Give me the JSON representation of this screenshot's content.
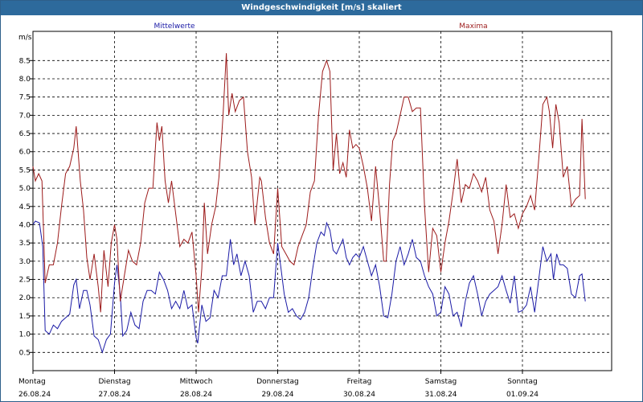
{
  "window": {
    "title": "Windgeschwindigkeit [m/s] skaliert"
  },
  "chart_data": {
    "type": "line",
    "title": "Windgeschwindigkeit [m/s] skaliert",
    "unit_label": "m/s",
    "xlabel": "",
    "ylabel": "m/s",
    "ylim": [
      0,
      9.3
    ],
    "y_ticks": [
      "0.5",
      "1.0",
      "1.5",
      "2.0",
      "2.5",
      "3.0",
      "3.5",
      "4.0",
      "4.5",
      "5.0",
      "5.5",
      "6.0",
      "6.5",
      "7.0",
      "7.5",
      "8.0",
      "8.5"
    ],
    "day_labels": [
      {
        "day": "Montag",
        "date": "26.08.24"
      },
      {
        "day": "Dienstag",
        "date": "27.08.24"
      },
      {
        "day": "Mittwoch",
        "date": "28.08.24"
      },
      {
        "day": "Donnerstag",
        "date": "29.08.24"
      },
      {
        "day": "Freitag",
        "date": "30.08.24"
      },
      {
        "day": "Samstag",
        "date": "31.08.24"
      },
      {
        "day": "Sonntag",
        "date": "01.09.24"
      }
    ],
    "x_range_days": [
      0,
      7.1
    ],
    "grid": true,
    "series": [
      {
        "name": "Mittelwerte",
        "color": "#1a1aa6",
        "points": [
          [
            0.0,
            4.0
          ],
          [
            0.03,
            4.1
          ],
          [
            0.08,
            4.05
          ],
          [
            0.12,
            3.4
          ],
          [
            0.15,
            1.1
          ],
          [
            0.2,
            1.0
          ],
          [
            0.25,
            1.25
          ],
          [
            0.3,
            1.15
          ],
          [
            0.35,
            1.35
          ],
          [
            0.4,
            1.45
          ],
          [
            0.45,
            1.55
          ],
          [
            0.5,
            2.35
          ],
          [
            0.53,
            2.5
          ],
          [
            0.57,
            1.7
          ],
          [
            0.62,
            2.2
          ],
          [
            0.66,
            2.2
          ],
          [
            0.7,
            1.8
          ],
          [
            0.75,
            0.95
          ],
          [
            0.8,
            0.85
          ],
          [
            0.85,
            0.5
          ],
          [
            0.9,
            0.85
          ],
          [
            0.95,
            1.0
          ],
          [
            1.0,
            2.4
          ],
          [
            1.03,
            2.9
          ],
          [
            1.07,
            2.1
          ],
          [
            1.1,
            0.95
          ],
          [
            1.15,
            1.1
          ],
          [
            1.2,
            1.6
          ],
          [
            1.25,
            1.25
          ],
          [
            1.3,
            1.15
          ],
          [
            1.35,
            1.9
          ],
          [
            1.4,
            2.2
          ],
          [
            1.45,
            2.2
          ],
          [
            1.5,
            2.1
          ],
          [
            1.55,
            2.7
          ],
          [
            1.6,
            2.5
          ],
          [
            1.65,
            2.2
          ],
          [
            1.7,
            1.7
          ],
          [
            1.75,
            1.9
          ],
          [
            1.8,
            1.7
          ],
          [
            1.85,
            2.2
          ],
          [
            1.9,
            1.7
          ],
          [
            1.95,
            1.8
          ],
          [
            2.0,
            0.9
          ],
          [
            2.02,
            0.75
          ],
          [
            2.07,
            1.8
          ],
          [
            2.12,
            1.35
          ],
          [
            2.17,
            1.45
          ],
          [
            2.22,
            2.2
          ],
          [
            2.27,
            2.0
          ],
          [
            2.32,
            2.6
          ],
          [
            2.37,
            2.6
          ],
          [
            2.42,
            3.6
          ],
          [
            2.46,
            2.9
          ],
          [
            2.5,
            3.2
          ],
          [
            2.55,
            2.6
          ],
          [
            2.6,
            3.0
          ],
          [
            2.65,
            2.6
          ],
          [
            2.7,
            1.6
          ],
          [
            2.75,
            1.9
          ],
          [
            2.8,
            1.9
          ],
          [
            2.85,
            1.7
          ],
          [
            2.9,
            2.0
          ],
          [
            2.95,
            2.0
          ],
          [
            3.0,
            3.5
          ],
          [
            3.04,
            2.8
          ],
          [
            3.08,
            2.1
          ],
          [
            3.13,
            1.6
          ],
          [
            3.18,
            1.7
          ],
          [
            3.23,
            1.5
          ],
          [
            3.28,
            1.4
          ],
          [
            3.33,
            1.6
          ],
          [
            3.38,
            2.0
          ],
          [
            3.43,
            2.8
          ],
          [
            3.48,
            3.5
          ],
          [
            3.53,
            3.8
          ],
          [
            3.57,
            3.7
          ],
          [
            3.6,
            4.05
          ],
          [
            3.64,
            3.85
          ],
          [
            3.68,
            3.3
          ],
          [
            3.72,
            3.2
          ],
          [
            3.76,
            3.4
          ],
          [
            3.8,
            3.6
          ],
          [
            3.84,
            3.1
          ],
          [
            3.88,
            2.9
          ],
          [
            3.92,
            3.1
          ],
          [
            3.96,
            3.2
          ],
          [
            4.0,
            3.1
          ],
          [
            4.05,
            3.4
          ],
          [
            4.1,
            3.0
          ],
          [
            4.15,
            2.6
          ],
          [
            4.2,
            2.9
          ],
          [
            4.25,
            2.3
          ],
          [
            4.3,
            1.5
          ],
          [
            4.35,
            1.45
          ],
          [
            4.4,
            2.1
          ],
          [
            4.45,
            3.0
          ],
          [
            4.5,
            3.4
          ],
          [
            4.55,
            2.9
          ],
          [
            4.6,
            3.2
          ],
          [
            4.65,
            3.6
          ],
          [
            4.7,
            3.1
          ],
          [
            4.75,
            3.0
          ],
          [
            4.8,
            2.6
          ],
          [
            4.85,
            2.3
          ],
          [
            4.9,
            2.1
          ],
          [
            4.95,
            1.5
          ],
          [
            5.0,
            1.6
          ],
          [
            5.05,
            2.3
          ],
          [
            5.1,
            2.1
          ],
          [
            5.15,
            1.5
          ],
          [
            5.2,
            1.6
          ],
          [
            5.25,
            1.2
          ],
          [
            5.3,
            1.9
          ],
          [
            5.35,
            2.4
          ],
          [
            5.4,
            2.6
          ],
          [
            5.45,
            2.1
          ],
          [
            5.5,
            1.5
          ],
          [
            5.55,
            1.9
          ],
          [
            5.6,
            2.1
          ],
          [
            5.65,
            2.2
          ],
          [
            5.7,
            2.3
          ],
          [
            5.75,
            2.6
          ],
          [
            5.8,
            2.2
          ],
          [
            5.85,
            1.85
          ],
          [
            5.9,
            2.6
          ],
          [
            5.95,
            1.6
          ],
          [
            6.0,
            1.65
          ],
          [
            6.05,
            1.8
          ],
          [
            6.1,
            2.3
          ],
          [
            6.15,
            1.6
          ],
          [
            6.2,
            2.5
          ],
          [
            6.25,
            3.4
          ],
          [
            6.3,
            3.0
          ],
          [
            6.35,
            3.2
          ],
          [
            6.38,
            2.5
          ],
          [
            6.42,
            3.2
          ],
          [
            6.46,
            2.9
          ],
          [
            6.5,
            2.9
          ],
          [
            6.55,
            2.8
          ],
          [
            6.6,
            2.1
          ],
          [
            6.65,
            2.0
          ],
          [
            6.7,
            2.6
          ],
          [
            6.73,
            2.65
          ],
          [
            6.77,
            1.9
          ]
        ]
      },
      {
        "name": "Maxima",
        "color": "#9c1a1a",
        "points": [
          [
            0.0,
            5.6
          ],
          [
            0.03,
            5.2
          ],
          [
            0.07,
            5.4
          ],
          [
            0.11,
            5.2
          ],
          [
            0.15,
            2.4
          ],
          [
            0.2,
            2.9
          ],
          [
            0.25,
            2.9
          ],
          [
            0.3,
            3.5
          ],
          [
            0.35,
            4.5
          ],
          [
            0.4,
            5.4
          ],
          [
            0.45,
            5.6
          ],
          [
            0.5,
            6.1
          ],
          [
            0.53,
            6.7
          ],
          [
            0.58,
            5.2
          ],
          [
            0.62,
            4.4
          ],
          [
            0.66,
            3.1
          ],
          [
            0.7,
            2.5
          ],
          [
            0.75,
            3.2
          ],
          [
            0.8,
            2.3
          ],
          [
            0.83,
            1.6
          ],
          [
            0.87,
            3.3
          ],
          [
            0.92,
            2.3
          ],
          [
            0.96,
            3.5
          ],
          [
            1.0,
            4.0
          ],
          [
            1.03,
            3.6
          ],
          [
            1.07,
            1.9
          ],
          [
            1.12,
            2.6
          ],
          [
            1.17,
            3.3
          ],
          [
            1.22,
            3.0
          ],
          [
            1.27,
            2.9
          ],
          [
            1.32,
            3.5
          ],
          [
            1.37,
            4.6
          ],
          [
            1.42,
            5.0
          ],
          [
            1.47,
            5.0
          ],
          [
            1.52,
            6.8
          ],
          [
            1.55,
            6.3
          ],
          [
            1.58,
            6.7
          ],
          [
            1.62,
            5.2
          ],
          [
            1.66,
            4.6
          ],
          [
            1.7,
            5.2
          ],
          [
            1.75,
            4.3
          ],
          [
            1.8,
            3.4
          ],
          [
            1.85,
            3.6
          ],
          [
            1.9,
            3.5
          ],
          [
            1.95,
            3.8
          ],
          [
            2.0,
            2.6
          ],
          [
            2.03,
            1.6
          ],
          [
            2.07,
            2.8
          ],
          [
            2.1,
            4.6
          ],
          [
            2.14,
            3.2
          ],
          [
            2.19,
            4.0
          ],
          [
            2.24,
            4.5
          ],
          [
            2.28,
            5.3
          ],
          [
            2.33,
            7.0
          ],
          [
            2.37,
            8.7
          ],
          [
            2.4,
            7.0
          ],
          [
            2.44,
            7.6
          ],
          [
            2.48,
            7.1
          ],
          [
            2.53,
            7.4
          ],
          [
            2.58,
            7.5
          ],
          [
            2.63,
            6.0
          ],
          [
            2.68,
            5.3
          ],
          [
            2.72,
            4.0
          ],
          [
            2.78,
            5.3
          ],
          [
            2.8,
            5.2
          ],
          [
            2.85,
            4.2
          ],
          [
            2.9,
            3.5
          ],
          [
            2.95,
            3.2
          ],
          [
            3.0,
            5.0
          ],
          [
            3.05,
            3.4
          ],
          [
            3.1,
            3.2
          ],
          [
            3.15,
            3.0
          ],
          [
            3.2,
            2.9
          ],
          [
            3.25,
            3.4
          ],
          [
            3.3,
            3.7
          ],
          [
            3.35,
            4.0
          ],
          [
            3.4,
            4.9
          ],
          [
            3.45,
            5.2
          ],
          [
            3.5,
            7.0
          ],
          [
            3.55,
            8.2
          ],
          [
            3.6,
            8.5
          ],
          [
            3.64,
            8.2
          ],
          [
            3.68,
            5.5
          ],
          [
            3.72,
            6.5
          ],
          [
            3.76,
            5.4
          ],
          [
            3.8,
            5.7
          ],
          [
            3.84,
            5.3
          ],
          [
            3.88,
            6.6
          ],
          [
            3.92,
            6.1
          ],
          [
            3.96,
            6.2
          ],
          [
            4.0,
            6.1
          ],
          [
            4.05,
            5.6
          ],
          [
            4.1,
            5.0
          ],
          [
            4.15,
            4.1
          ],
          [
            4.2,
            5.6
          ],
          [
            4.25,
            4.4
          ],
          [
            4.3,
            3.0
          ],
          [
            4.33,
            3.0
          ],
          [
            4.37,
            5.1
          ],
          [
            4.41,
            6.3
          ],
          [
            4.45,
            6.5
          ],
          [
            4.5,
            7.0
          ],
          [
            4.55,
            7.5
          ],
          [
            4.6,
            7.5
          ],
          [
            4.65,
            7.1
          ],
          [
            4.7,
            7.2
          ],
          [
            4.75,
            7.2
          ],
          [
            4.8,
            4.5
          ],
          [
            4.85,
            2.7
          ],
          [
            4.9,
            3.9
          ],
          [
            4.95,
            3.7
          ],
          [
            5.0,
            2.7
          ],
          [
            5.05,
            3.5
          ],
          [
            5.1,
            4.1
          ],
          [
            5.15,
            4.9
          ],
          [
            5.2,
            5.8
          ],
          [
            5.25,
            4.6
          ],
          [
            5.3,
            5.1
          ],
          [
            5.35,
            5.0
          ],
          [
            5.4,
            5.4
          ],
          [
            5.45,
            5.2
          ],
          [
            5.5,
            4.9
          ],
          [
            5.55,
            5.3
          ],
          [
            5.6,
            4.4
          ],
          [
            5.65,
            4.1
          ],
          [
            5.7,
            3.2
          ],
          [
            5.75,
            4.0
          ],
          [
            5.8,
            5.1
          ],
          [
            5.85,
            4.2
          ],
          [
            5.9,
            4.3
          ],
          [
            5.95,
            3.9
          ],
          [
            6.0,
            4.3
          ],
          [
            6.05,
            4.5
          ],
          [
            6.1,
            4.8
          ],
          [
            6.15,
            4.4
          ],
          [
            6.2,
            5.8
          ],
          [
            6.25,
            7.3
          ],
          [
            6.3,
            7.5
          ],
          [
            6.33,
            7.1
          ],
          [
            6.37,
            6.1
          ],
          [
            6.41,
            7.3
          ],
          [
            6.45,
            6.8
          ],
          [
            6.5,
            5.3
          ],
          [
            6.55,
            5.6
          ],
          [
            6.6,
            4.5
          ],
          [
            6.65,
            4.7
          ],
          [
            6.7,
            4.8
          ],
          [
            6.73,
            6.9
          ],
          [
            6.77,
            4.7
          ]
        ]
      }
    ]
  }
}
